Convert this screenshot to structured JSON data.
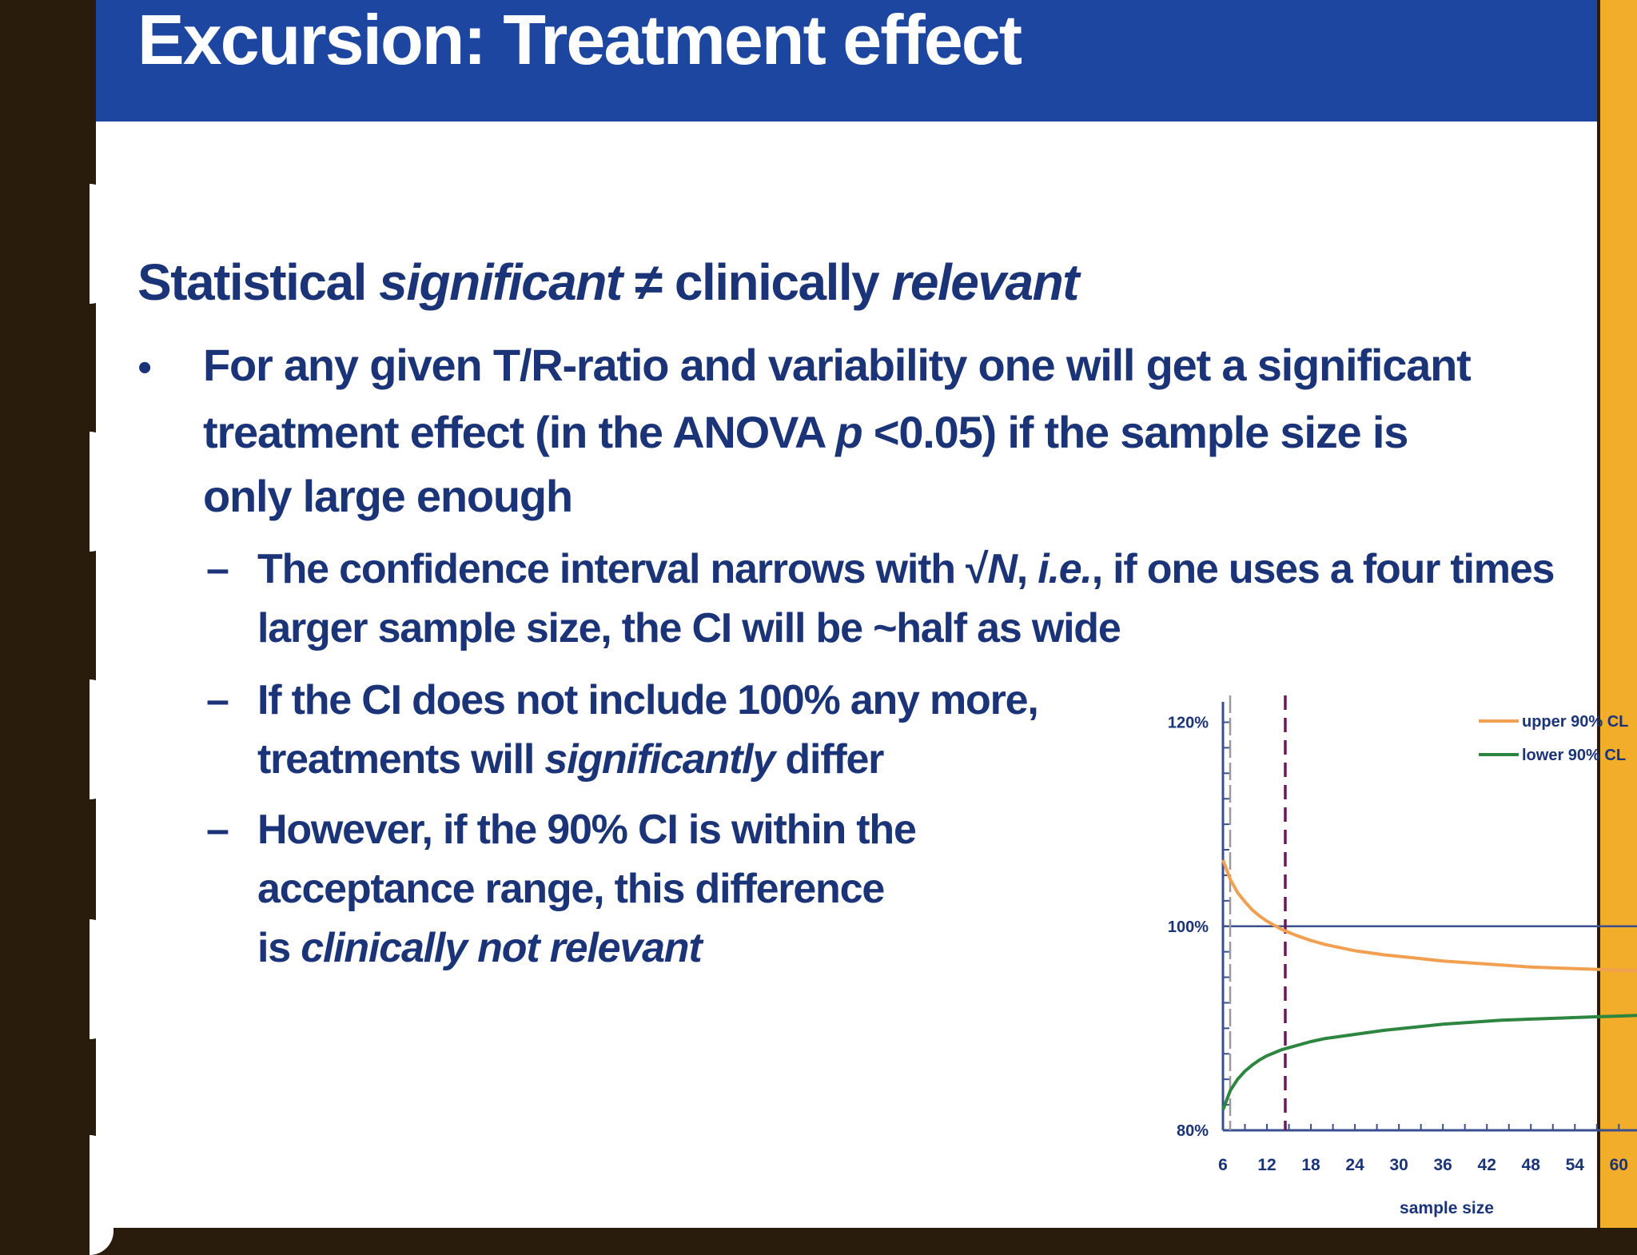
{
  "slide": {
    "title": "Excursion: Treatment effect",
    "heading": {
      "part1": "Statistical ",
      "part2": "significant",
      "part3": " ≠ clinically ",
      "part4": "relevant"
    },
    "bullet": {
      "symbol": "•",
      "line1": "For any given T/R-ratio and variability one will get a significant",
      "line2a": "treatment effect (in the ANOVA ",
      "line2b": "p",
      "line2c": " <0.05) if the sample size is",
      "line3": "only large enough"
    },
    "subbullets": {
      "dash": "–",
      "s1_line1a": "The confidence interval narrows with √",
      "s1_line1b": "N",
      "s1_line1c": ", ",
      "s1_line1d": "i.e.",
      "s1_line1e": ", if one uses a four times",
      "s1_line2": "larger sample size, the CI will be ~half as wide",
      "s2_line1": "If the CI does not include 100% any more,",
      "s2_line2a": "treatments will ",
      "s2_line2b": "significantly",
      "s2_line2c": " differ",
      "s3_line1": "However, if the 90% CI is within the",
      "s3_line2": "acceptance range, this difference",
      "s3_line3a": "is ",
      "s3_line3b": "clinically not relevant"
    }
  },
  "chart_data": {
    "type": "line",
    "xlabel": "sample size",
    "x_ticks": [
      "6",
      "12",
      "18",
      "24",
      "30",
      "36",
      "42",
      "48",
      "54",
      "60"
    ],
    "y_ticks": [
      "80%",
      "100%",
      "120%"
    ],
    "xlim": [
      6,
      64
    ],
    "ylim": [
      80,
      122
    ],
    "reference_line": {
      "y": 100,
      "color": "#3b4f8f"
    },
    "vertical_markers": [
      {
        "x": 6,
        "style": "dashed",
        "color": "#9a9a9a"
      },
      {
        "x": 14.5,
        "style": "dashed",
        "color": "#6a1a5a"
      }
    ],
    "series": [
      {
        "name": "upper 90% CL",
        "color": "#f0a050",
        "x": [
          6,
          7,
          8,
          9,
          10,
          11,
          12,
          13,
          14,
          16,
          18,
          20,
          24,
          28,
          32,
          36,
          40,
          44,
          48,
          52,
          56,
          60,
          64
        ],
        "y": [
          106.5,
          104.6,
          103.3,
          102.4,
          101.6,
          101.0,
          100.5,
          100.1,
          99.7,
          99.1,
          98.6,
          98.2,
          97.6,
          97.2,
          96.9,
          96.6,
          96.4,
          96.2,
          96.0,
          95.9,
          95.8,
          95.7,
          95.6
        ]
      },
      {
        "name": "lower 90% CL",
        "color": "#2e8540",
        "x": [
          6,
          7,
          8,
          9,
          10,
          11,
          12,
          13,
          14,
          16,
          18,
          20,
          24,
          28,
          32,
          36,
          40,
          44,
          48,
          52,
          56,
          60,
          64
        ],
        "y": [
          82.0,
          83.9,
          85.0,
          85.8,
          86.4,
          86.9,
          87.3,
          87.6,
          87.9,
          88.3,
          88.7,
          89.0,
          89.4,
          89.8,
          90.1,
          90.4,
          90.6,
          90.8,
          90.9,
          91.0,
          91.1,
          91.2,
          91.3
        ]
      }
    ]
  }
}
